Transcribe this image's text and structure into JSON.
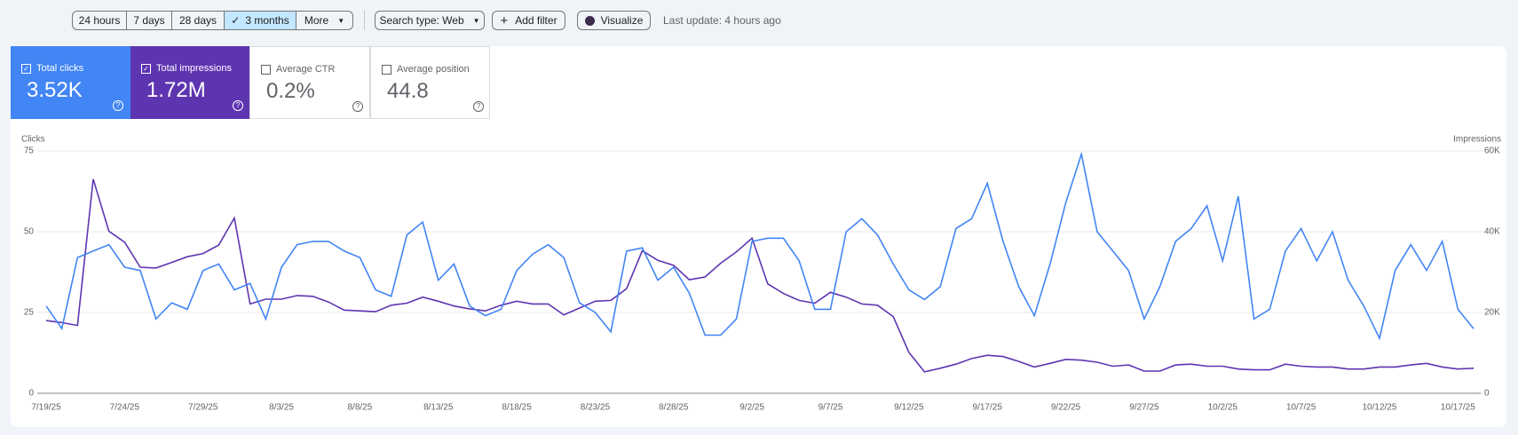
{
  "toolbar": {
    "date_ranges": [
      "24 hours",
      "7 days",
      "28 days",
      "3 months"
    ],
    "more": "More",
    "search_type": "Search type: Web",
    "add_filter": "Add filter",
    "visualize": "Visualize",
    "last_update": "Last update: 4 hours ago"
  },
  "metrics": [
    {
      "label": "Total clicks",
      "value": "3.52K",
      "checked": true
    },
    {
      "label": "Total impressions",
      "value": "1.72M",
      "checked": true
    },
    {
      "label": "Average CTR",
      "value": "0.2%",
      "checked": false
    },
    {
      "label": "Average position",
      "value": "44.8",
      "checked": false
    }
  ],
  "chart_data": {
    "type": "line",
    "ylabel": "Clicks",
    "y2label": "Impressions",
    "categories": [
      "7/19/25",
      null,
      null,
      null,
      null,
      "7/24/25",
      null,
      null,
      null,
      null,
      "7/29/25",
      null,
      null,
      null,
      null,
      "8/3/25",
      null,
      null,
      null,
      null,
      "8/8/25",
      null,
      null,
      null,
      null,
      "8/13/25",
      null,
      null,
      null,
      null,
      "8/18/25",
      null,
      null,
      null,
      null,
      "8/23/25",
      null,
      null,
      null,
      null,
      "8/28/25",
      null,
      null,
      null,
      null,
      "9/2/25",
      null,
      null,
      null,
      null,
      "9/7/25",
      null,
      null,
      null,
      null,
      "9/12/25",
      null,
      null,
      null,
      null,
      "9/17/25",
      null,
      null,
      null,
      null,
      "9/22/25",
      null,
      null,
      null,
      null,
      "9/27/25",
      null,
      null,
      null,
      null,
      "10/2/25",
      null,
      null,
      null,
      null,
      "10/7/25",
      null,
      null,
      null,
      null,
      "10/12/25",
      null,
      null,
      null,
      null,
      "10/17/25",
      null
    ],
    "series": [
      {
        "color": "#4285f4",
        "values": [
          27,
          20,
          42,
          44,
          46,
          39,
          38,
          23,
          28,
          26,
          38,
          40,
          32,
          34,
          23,
          39,
          46,
          47,
          47,
          44,
          42,
          32,
          30,
          49,
          53,
          35,
          40,
          27,
          24,
          26,
          38,
          43,
          46,
          42,
          28,
          25,
          19,
          44,
          45,
          35,
          39,
          31,
          18,
          18,
          23,
          47,
          48,
          48,
          41,
          26,
          26,
          50,
          54,
          49,
          40,
          32,
          29,
          33,
          51,
          54,
          65,
          47,
          33,
          24,
          40,
          59,
          74,
          50,
          44,
          38,
          23,
          33,
          47,
          51,
          58,
          41,
          61,
          23,
          26,
          44,
          51,
          41,
          50,
          35,
          27,
          17,
          38,
          46,
          38,
          47,
          26,
          20
        ]
      },
      {
        "color": "#5e35b1",
        "axis": "y2",
        "values": [
          18000,
          17500,
          16800,
          53000,
          40100,
          37400,
          31200,
          31000,
          32400,
          33800,
          34600,
          36700,
          43400,
          22100,
          23300,
          23300,
          24200,
          24000,
          22600,
          20600,
          20400,
          20200,
          21800,
          22300,
          23800,
          22800,
          21600,
          20900,
          20400,
          21800,
          22800,
          22100,
          22100,
          19400,
          21100,
          22800,
          23000,
          25900,
          35300,
          32900,
          31700,
          28100,
          28800,
          32200,
          35000,
          38400,
          27100,
          24700,
          23000,
          22300,
          25000,
          23800,
          22100,
          21800,
          19000,
          10100,
          5300,
          6200,
          7200,
          8600,
          9400,
          9100,
          7900,
          6500,
          7400,
          8400,
          8200,
          7700,
          6700,
          7000,
          5500,
          5500,
          7000,
          7200,
          6700,
          6700,
          6000,
          5800,
          5800,
          7200,
          6700,
          6500,
          6500,
          6000,
          6000,
          6500,
          6500,
          7000,
          7400,
          6500,
          6000,
          6200
        ]
      }
    ],
    "ylim": [
      0,
      75
    ],
    "yticks": [
      0,
      25,
      50,
      75
    ],
    "y2lim": [
      0,
      60000
    ],
    "y2ticks": [
      0,
      {
        "value": 20000,
        "label": "20K"
      },
      {
        "value": 40000,
        "label": "40K"
      },
      {
        "value": 60000,
        "label": "60K"
      }
    ],
    "grid": true
  }
}
